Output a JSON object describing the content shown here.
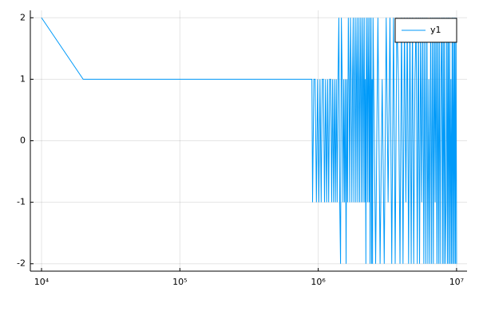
{
  "chart_data": {
    "type": "line",
    "xscale": "log",
    "grid": true,
    "legend": "top-right",
    "xlim": [
      8300,
      11900000
    ],
    "ylim": [
      -2.12,
      2.12
    ],
    "xticks": [
      {
        "value": 10000,
        "label": "10⁴"
      },
      {
        "value": 100000,
        "label": "10⁵"
      },
      {
        "value": 1000000,
        "label": "10⁶"
      },
      {
        "value": 10000000,
        "label": "10⁷"
      }
    ],
    "yticks": [
      -2,
      -1,
      0,
      1,
      2
    ],
    "x": [
      10000,
      20000,
      900000,
      910000,
      930000,
      950000,
      970000,
      990000,
      1010000,
      1030000,
      1050000,
      1070000,
      1090000,
      1110000,
      1130000,
      1150000,
      1170000,
      1190000,
      1210000,
      1230000,
      1250000,
      1270000,
      1290000,
      1310000,
      1330000,
      1350000,
      1370000,
      1390000,
      1410000,
      1430000,
      1450000,
      1470000,
      1490000,
      1510000,
      1530000,
      1550000,
      1570000,
      1590000,
      1610000,
      1630000,
      1650000,
      1670000,
      1690000,
      1710000,
      1730000,
      1750000,
      1770000,
      1790000,
      1810000,
      1830000,
      1850000,
      1870000,
      1890000,
      1910000,
      1930000,
      1950000,
      1970000,
      1990000,
      2010000,
      2030000,
      2050000,
      2070000,
      2090000,
      2110000,
      2130000,
      2150000,
      2170000,
      2190000,
      2210000,
      2230000,
      2250000,
      2270000,
      2290000,
      2310000,
      2330000,
      2350000,
      2370000,
      2390000,
      2410000,
      2430000,
      2450000,
      2470000,
      2490000,
      2600000,
      2700000,
      2800000,
      2900000,
      3000000,
      3100000,
      3200000,
      3300000,
      3400000,
      3500000,
      3600000,
      3700000,
      3800000,
      3900000,
      4000000,
      4100000,
      4200000,
      4300000,
      4400000,
      4500000,
      4600000,
      4700000,
      4800000,
      4900000,
      5000000,
      5100000,
      5200000,
      5300000,
      5400000,
      5500000,
      5600000,
      5700000,
      5800000,
      5900000,
      6000000,
      6100000,
      6200000,
      6300000,
      6400000,
      6500000,
      6600000,
      6700000,
      6800000,
      6900000,
      7000000,
      7100000,
      7200000,
      7300000,
      7400000,
      7500000,
      7600000,
      7700000,
      7800000,
      7900000,
      8000000,
      8100000,
      8200000,
      8300000,
      8400000,
      8500000,
      8600000,
      8700000,
      8800000,
      8900000,
      9000000,
      9100000,
      9200000,
      9300000,
      9400000,
      9500000,
      9600000,
      9700000,
      9800000,
      9900000,
      10000000
    ],
    "series": [
      {
        "name": "y1",
        "color": "#009af9",
        "values": [
          2,
          1,
          1,
          -1,
          1,
          1,
          -1,
          1,
          -1,
          1,
          -1,
          1,
          1,
          -1,
          1,
          -1,
          1,
          -1,
          1,
          1,
          -1,
          1,
          -1,
          1,
          -1,
          1,
          -1,
          1,
          2,
          -1,
          -2,
          2,
          1,
          -1,
          1,
          -1,
          1,
          -2,
          1,
          -1,
          2,
          1,
          -1,
          2,
          1,
          -1,
          1,
          2,
          -1,
          1,
          2,
          -1,
          1,
          2,
          -1,
          1,
          2,
          -1,
          1,
          2,
          -1,
          1,
          2,
          -1,
          1,
          2,
          -1,
          1,
          -2,
          2,
          1,
          -1,
          2,
          1,
          -1,
          2,
          -2,
          1,
          2,
          -2,
          1,
          -2,
          2,
          -2,
          2,
          -2,
          1,
          -2,
          2,
          -1,
          2,
          -2,
          2,
          -2,
          2,
          1,
          -2,
          2,
          -2,
          2,
          -1,
          2,
          -2,
          2,
          -2,
          2,
          -2,
          1,
          2,
          -2,
          2,
          -2,
          2,
          -1,
          2,
          -2,
          2,
          -2,
          2,
          -2,
          1,
          -2,
          2,
          -2,
          2,
          -2,
          2,
          -1,
          2,
          -2,
          2,
          -2,
          2,
          -2,
          1,
          2,
          -2,
          2,
          -2,
          2,
          -2,
          -1,
          2,
          -2,
          2,
          -2,
          2,
          -2,
          1,
          -2,
          2,
          -2,
          2,
          -2,
          2,
          -2,
          2,
          -2
        ]
      }
    ]
  }
}
